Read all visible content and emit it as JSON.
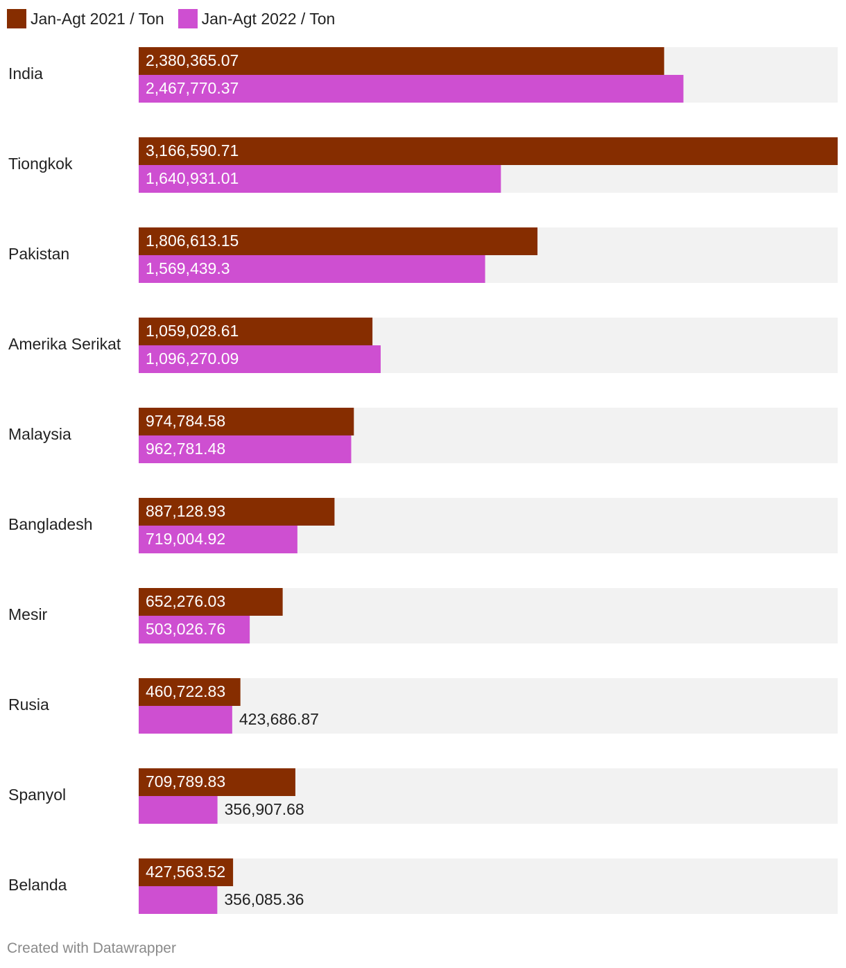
{
  "chart_data": {
    "type": "bar",
    "orientation": "horizontal",
    "categories": [
      "India",
      "Tiongkok",
      "Pakistan",
      "Amerika Serikat",
      "Malaysia",
      "Bangladesh",
      "Mesir",
      "Rusia",
      "Spanyol",
      "Belanda"
    ],
    "series": [
      {
        "name": "Jan-Agt 2021 / Ton",
        "color": "#862d00",
        "values": [
          2380365.07,
          3166590.71,
          1806613.15,
          1059028.61,
          974784.58,
          887128.93,
          652276.03,
          460722.83,
          709789.83,
          427563.52
        ],
        "labels": [
          "2,380,365.07",
          "3,166,590.71",
          "1,806,613.15",
          "1,059,028.61",
          "974,784.58",
          "887,128.93",
          "652,276.03",
          "460,722.83",
          "709,789.83",
          "427,563.52"
        ]
      },
      {
        "name": "Jan-Agt 2022 / Ton",
        "color": "#ce4fd1",
        "values": [
          2467770.37,
          1640931.01,
          1569439.3,
          1096270.09,
          962781.48,
          719004.92,
          503026.76,
          423686.87,
          356907.68,
          356085.36
        ],
        "labels": [
          "2,467,770.37",
          "1,640,931.01",
          "1,569,439.3",
          "1,096,270.09",
          "962,781.48",
          "719,004.92",
          "503,026.76",
          "423,686.87",
          "356,907.68",
          "356,085.36"
        ]
      }
    ],
    "xlim": [
      0,
      3166590.71
    ],
    "legend_position": "top-left",
    "background_track_color": "#f2f2f2"
  },
  "footer": {
    "credit": "Created with Datawrapper"
  }
}
